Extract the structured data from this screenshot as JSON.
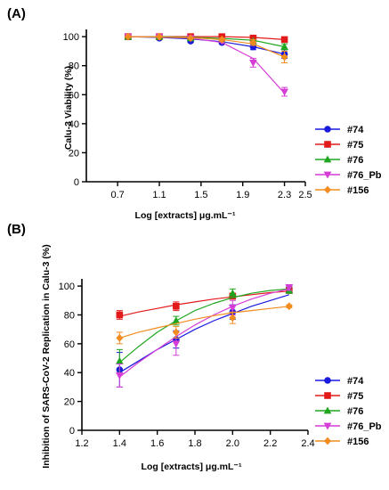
{
  "chart_data": [
    {
      "panel_label": "(A)",
      "type": "scatter",
      "xlabel": "Log [extracts]  μg.mL⁻¹",
      "ylabel": "Calu-3 Viability (%)",
      "xlim": [
        0.4,
        2.5
      ],
      "ylim": [
        0,
        105
      ],
      "xticks": [
        "0.7",
        "1.1",
        "1.5",
        "1.9",
        "2.3",
        "2.5"
      ],
      "xtick_values": [
        0.7,
        1.1,
        1.5,
        1.9,
        2.3,
        2.5
      ],
      "yticks": [
        "0",
        "20",
        "40",
        "60",
        "80",
        "100"
      ],
      "ytick_values": [
        0,
        20,
        40,
        60,
        80,
        100
      ],
      "grid": false,
      "legend_position": "right",
      "series": [
        {
          "name": "#74",
          "color": "#1a1adf",
          "marker": "circle",
          "x": [
            0.8,
            1.1,
            1.4,
            1.7,
            2.0,
            2.3
          ],
          "y": [
            100,
            99,
            97,
            96,
            93,
            88
          ],
          "err": [
            0,
            1,
            1,
            1,
            2,
            3
          ],
          "fit": [
            100,
            99.5,
            98.5,
            96.5,
            93,
            88
          ]
        },
        {
          "name": "#75",
          "color": "#e31a1a",
          "marker": "square",
          "x": [
            0.8,
            1.1,
            1.4,
            1.7,
            2.0,
            2.3
          ],
          "y": [
            100,
            100,
            100,
            100,
            99,
            98
          ],
          "err": [
            0,
            0,
            0,
            0,
            1,
            1
          ],
          "fit": [
            100,
            100,
            100,
            100,
            99.5,
            98
          ]
        },
        {
          "name": "#76",
          "color": "#1ea61e",
          "marker": "triangle-up",
          "x": [
            0.8,
            1.1,
            1.4,
            1.7,
            2.0,
            2.3
          ],
          "y": [
            100,
            100,
            99,
            98,
            97,
            93
          ],
          "err": [
            0,
            0,
            0,
            1,
            1,
            2
          ],
          "fit": [
            100,
            100,
            99.5,
            98.8,
            97.5,
            93
          ]
        },
        {
          "name": "#76_Pb",
          "color": "#d63cd6",
          "marker": "triangle-down",
          "x": [
            0.8,
            1.1,
            1.4,
            1.7,
            2.0,
            2.3
          ],
          "y": [
            100,
            100,
            99,
            97,
            82,
            62
          ],
          "err": [
            0,
            0,
            0,
            1,
            3,
            3
          ],
          "fit": [
            100,
            99.8,
            99,
            96,
            85,
            61
          ]
        },
        {
          "name": "#156",
          "color": "#f28c1f",
          "marker": "diamond",
          "x": [
            0.8,
            1.1,
            1.4,
            1.7,
            2.0,
            2.3
          ],
          "y": [
            100,
            100,
            99,
            98,
            96,
            86
          ],
          "err": [
            0,
            0,
            0,
            1,
            2,
            4
          ],
          "fit": [
            100,
            99.8,
            99.3,
            98,
            95,
            86
          ]
        }
      ]
    },
    {
      "panel_label": "(B)",
      "type": "scatter",
      "xlabel": "Log [extracts]  μg.mL⁻¹",
      "ylabel": "Inhibition of SARS-CoV-2 Replication in Calu-3 (%)",
      "xlim": [
        1.2,
        2.4
      ],
      "ylim": [
        0,
        105
      ],
      "xticks": [
        "1.2",
        "1.4",
        "1.6",
        "1.8",
        "2.0",
        "2.2",
        "2.4"
      ],
      "xtick_values": [
        1.2,
        1.4,
        1.6,
        1.8,
        2.0,
        2.2,
        2.4
      ],
      "yticks": [
        "0",
        "20",
        "40",
        "60",
        "80",
        "100"
      ],
      "ytick_values": [
        0,
        20,
        40,
        60,
        80,
        100
      ],
      "grid": false,
      "legend_position": "right",
      "series": [
        {
          "name": "#74",
          "color": "#1a1adf",
          "marker": "circle",
          "x": [
            1.4,
            1.7,
            2.0,
            2.3
          ],
          "y": [
            42,
            63,
            82,
            98
          ],
          "err": [
            12,
            6,
            5,
            2
          ],
          "fit_x": [
            1.4,
            1.5,
            1.6,
            1.7,
            1.8,
            1.9,
            2.0,
            2.1,
            2.2,
            2.3
          ],
          "fit_y": [
            40,
            48,
            56,
            63,
            70,
            76,
            81,
            86,
            90,
            94
          ]
        },
        {
          "name": "#75",
          "color": "#e31a1a",
          "marker": "square",
          "x": [
            1.4,
            1.7,
            2.0,
            2.3
          ],
          "y": [
            80,
            86,
            93,
            97
          ],
          "err": [
            3,
            3,
            2,
            2
          ],
          "fit_x": [
            1.4,
            1.5,
            1.6,
            1.7,
            1.8,
            1.9,
            2.0,
            2.1,
            2.2,
            2.3
          ],
          "fit_y": [
            79,
            82,
            84.5,
            87,
            89,
            91,
            92.5,
            94,
            95.5,
            96.5
          ]
        },
        {
          "name": "#76",
          "color": "#1ea61e",
          "marker": "triangle-up",
          "x": [
            1.4,
            1.7,
            2.0,
            2.3
          ],
          "y": [
            48,
            76,
            95,
            97
          ],
          "err": [
            8,
            3,
            3,
            2
          ],
          "fit_x": [
            1.4,
            1.5,
            1.6,
            1.7,
            1.8,
            1.9,
            2.0,
            2.1,
            2.2,
            2.3
          ],
          "fit_y": [
            47,
            58,
            68,
            76,
            83,
            88,
            92,
            95,
            97,
            98
          ]
        },
        {
          "name": "#76_Pb",
          "color": "#d63cd6",
          "marker": "triangle-down",
          "x": [
            1.4,
            1.7,
            2.0,
            2.3
          ],
          "y": [
            38,
            60,
            85,
            99
          ],
          "err": [
            8,
            8,
            5,
            2
          ],
          "fit_x": [
            1.4,
            1.5,
            1.6,
            1.7,
            1.8,
            1.9,
            2.0,
            2.1,
            2.2,
            2.3
          ],
          "fit_y": [
            37,
            47,
            56,
            65,
            73,
            80,
            86,
            91,
            95,
            98
          ]
        },
        {
          "name": "#156",
          "color": "#f28c1f",
          "marker": "diamond",
          "x": [
            1.4,
            1.7,
            2.0,
            2.3
          ],
          "y": [
            64,
            68,
            78,
            86
          ],
          "err": [
            4,
            4,
            4,
            1
          ],
          "fit_x": [
            1.4,
            1.5,
            1.6,
            1.7,
            1.8,
            1.9,
            2.0,
            2.1,
            2.2,
            2.3
          ],
          "fit_y": [
            64,
            68,
            71,
            74,
            77,
            79.5,
            81.5,
            83,
            84.5,
            86
          ]
        }
      ]
    }
  ]
}
